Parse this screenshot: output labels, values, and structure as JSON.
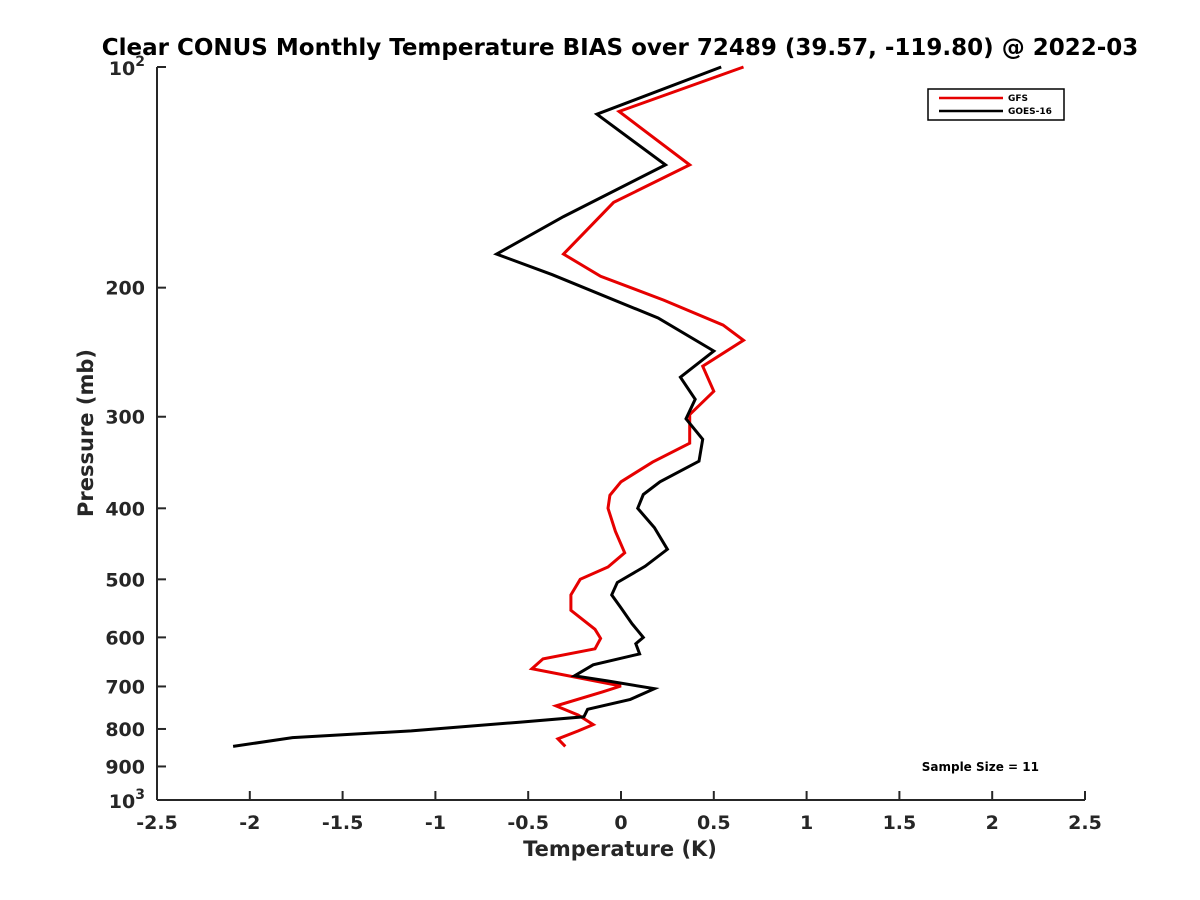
{
  "chart_data": {
    "type": "line",
    "title": "Clear CONUS Monthly Temperature BIAS over 72489 (39.57, -119.80) @ 2022-03",
    "xlabel": "Temperature (K)",
    "ylabel": "Pressure (mb)",
    "xlim": [
      -2.5,
      2.5
    ],
    "ylim": [
      100,
      1000
    ],
    "yscale": "log",
    "y_reversed": true,
    "xticks": [
      -2.5,
      -2,
      -1.5,
      -1,
      -0.5,
      0,
      0.5,
      1,
      1.5,
      2,
      2.5
    ],
    "xtick_labels": [
      "-2.5",
      "-2",
      "-1.5",
      "-1",
      "-0.5",
      "0",
      "0.5",
      "1",
      "1.5",
      "2",
      "2.5"
    ],
    "yticks": [
      200,
      300,
      400,
      500,
      600,
      700,
      800,
      900
    ],
    "ytick_labels": [
      "200",
      "300",
      "400",
      "500",
      "600",
      "700",
      "800",
      "900"
    ],
    "ytick_top": {
      "base": "10",
      "exp": "2",
      "value": 100
    },
    "ytick_bottom": {
      "base": "10",
      "exp": "3",
      "value": 1000
    },
    "legend_position": "top-right",
    "annotation": "Sample Size = 11",
    "series": [
      {
        "name": "GFS",
        "color": "#e60000",
        "points": [
          [
            0.66,
            100
          ],
          [
            -0.01,
            115
          ],
          [
            0.37,
            136
          ],
          [
            -0.04,
            153
          ],
          [
            -0.31,
            180
          ],
          [
            -0.11,
            193
          ],
          [
            0.23,
            208
          ],
          [
            0.55,
            225
          ],
          [
            0.66,
            236
          ],
          [
            0.44,
            256
          ],
          [
            0.5,
            277
          ],
          [
            0.37,
            298
          ],
          [
            0.37,
            326
          ],
          [
            0.17,
            346
          ],
          [
            0.0,
            368
          ],
          [
            -0.06,
            384
          ],
          [
            -0.07,
            400
          ],
          [
            -0.03,
            430
          ],
          [
            0.02,
            460
          ],
          [
            -0.07,
            481
          ],
          [
            -0.22,
            500
          ],
          [
            -0.27,
            525
          ],
          [
            -0.27,
            551
          ],
          [
            -0.14,
            585
          ],
          [
            -0.11,
            602
          ],
          [
            -0.14,
            622
          ],
          [
            -0.42,
            642
          ],
          [
            -0.48,
            662
          ],
          [
            0.0,
            699
          ],
          [
            -0.1,
            712
          ],
          [
            -0.35,
            744
          ],
          [
            -0.23,
            766
          ],
          [
            -0.15,
            789
          ],
          [
            -0.23,
            805
          ],
          [
            -0.34,
            825
          ],
          [
            -0.3,
            845
          ]
        ]
      },
      {
        "name": "GOES-16",
        "color": "#000000",
        "points": [
          [
            0.54,
            100
          ],
          [
            -0.13,
            116
          ],
          [
            0.24,
            136
          ],
          [
            -0.31,
            160
          ],
          [
            -0.67,
            180
          ],
          [
            -0.37,
            192
          ],
          [
            0.2,
            220
          ],
          [
            0.5,
            244
          ],
          [
            0.32,
            265
          ],
          [
            0.4,
            284
          ],
          [
            0.35,
            302
          ],
          [
            0.44,
            322
          ],
          [
            0.42,
            345
          ],
          [
            0.21,
            368
          ],
          [
            0.12,
            383
          ],
          [
            0.09,
            400
          ],
          [
            0.18,
            425
          ],
          [
            0.25,
            455
          ],
          [
            0.13,
            480
          ],
          [
            -0.02,
            505
          ],
          [
            -0.05,
            525
          ],
          [
            0.0,
            547
          ],
          [
            0.06,
            575
          ],
          [
            0.12,
            600
          ],
          [
            0.08,
            612
          ],
          [
            0.1,
            632
          ],
          [
            -0.15,
            654
          ],
          [
            -0.25,
            677
          ],
          [
            -0.07,
            688
          ],
          [
            0.18,
            705
          ],
          [
            0.05,
            729
          ],
          [
            -0.18,
            752
          ],
          [
            -0.2,
            770
          ],
          [
            -0.54,
            783
          ],
          [
            -1.13,
            805
          ],
          [
            -1.77,
            822
          ],
          [
            -2.09,
            845
          ]
        ]
      }
    ]
  }
}
